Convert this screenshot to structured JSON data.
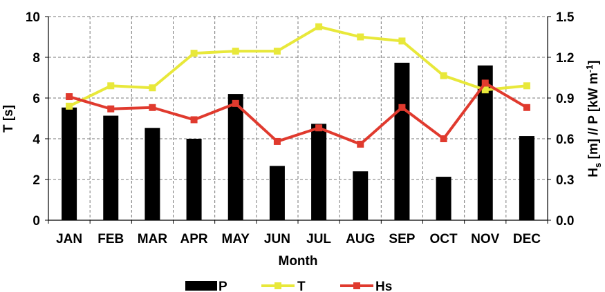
{
  "chart_data": {
    "type": "bar",
    "categories": [
      "JAN",
      "FEB",
      "MAR",
      "APR",
      "MAY",
      "JUN",
      "JUL",
      "AUG",
      "SEP",
      "OCT",
      "NOV",
      "DEC"
    ],
    "xlabel": "Month",
    "ylabel_left": "T [s]",
    "ylabel_right": {
      "base": "H",
      "sub": "s",
      "middle": " [m] // P [kW m",
      "sup": "-1",
      "end": "]"
    },
    "ylim_left": [
      0,
      10
    ],
    "ylim_right": [
      0,
      1.5
    ],
    "yticks_left": [
      "0",
      "2",
      "4",
      "6",
      "8",
      "10"
    ],
    "yticks_right": [
      "0.0",
      "0.3",
      "0.6",
      "0.9",
      "1.2",
      "1.5"
    ],
    "grid": true,
    "legend_position": "bottom",
    "series": [
      {
        "name": "P",
        "type": "bar",
        "axis": "right",
        "color": "#000000",
        "values": [
          0.83,
          0.77,
          0.68,
          0.6,
          0.93,
          0.4,
          0.71,
          0.36,
          1.16,
          0.32,
          1.14,
          0.62
        ]
      },
      {
        "name": "T",
        "type": "line",
        "axis": "left",
        "color": "#e8e83a",
        "values": [
          5.6,
          6.6,
          6.5,
          8.2,
          8.3,
          8.3,
          9.5,
          9.0,
          8.8,
          7.1,
          6.4,
          6.6
        ]
      },
      {
        "name": "Hs",
        "type": "line",
        "axis": "right",
        "color": "#e03a2e",
        "values": [
          0.91,
          0.82,
          0.83,
          0.74,
          0.86,
          0.58,
          0.68,
          0.56,
          0.83,
          0.6,
          1.01,
          0.83
        ]
      }
    ]
  }
}
